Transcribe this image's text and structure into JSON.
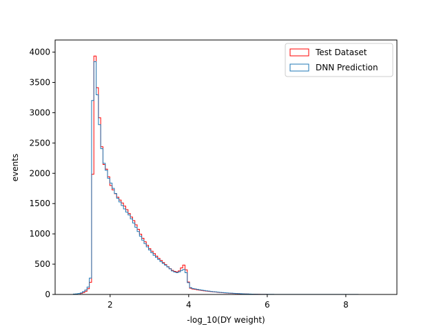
{
  "chart_data": {
    "type": "histogram-step",
    "xlabel": "-log_10(DY weight)",
    "ylabel": "events",
    "xlim": [
      0.6,
      9.3
    ],
    "ylim": [
      0,
      4200
    ],
    "xticks": [
      2,
      4,
      6,
      8
    ],
    "yticks": [
      0,
      500,
      1000,
      1500,
      2000,
      2500,
      3000,
      3500,
      4000
    ],
    "grid": false,
    "legend_position": "top-right",
    "bin_edges_range": [
      0.6,
      9.3
    ],
    "bin_count": 150,
    "series": [
      {
        "name": "Test Dataset",
        "color": "#ff0000",
        "points": [
          [
            1.22,
            10
          ],
          [
            1.28,
            20
          ],
          [
            1.34,
            35
          ],
          [
            1.4,
            60
          ],
          [
            1.46,
            110
          ],
          [
            1.52,
            250
          ],
          [
            1.55,
            1720
          ],
          [
            1.61,
            3980
          ],
          [
            1.7,
            3170
          ],
          [
            1.76,
            2680
          ],
          [
            1.82,
            2180
          ],
          [
            1.9,
            2080
          ],
          [
            1.96,
            1950
          ],
          [
            2.02,
            1800
          ],
          [
            2.1,
            1700
          ],
          [
            2.2,
            1600
          ],
          [
            2.3,
            1520
          ],
          [
            2.4,
            1430
          ],
          [
            2.5,
            1320
          ],
          [
            2.6,
            1220
          ],
          [
            2.7,
            1100
          ],
          [
            2.8,
            960
          ],
          [
            2.9,
            860
          ],
          [
            3.0,
            760
          ],
          [
            3.1,
            690
          ],
          [
            3.2,
            620
          ],
          [
            3.3,
            560
          ],
          [
            3.4,
            500
          ],
          [
            3.5,
            440
          ],
          [
            3.6,
            390
          ],
          [
            3.7,
            370
          ],
          [
            3.8,
            400
          ],
          [
            3.85,
            500
          ],
          [
            3.92,
            460
          ],
          [
            4.02,
            110
          ],
          [
            4.1,
            90
          ],
          [
            4.25,
            75
          ],
          [
            4.4,
            60
          ],
          [
            4.6,
            45
          ],
          [
            4.8,
            32
          ],
          [
            5.0,
            22
          ],
          [
            5.2,
            14
          ],
          [
            5.4,
            9
          ],
          [
            5.6,
            5
          ],
          [
            5.8,
            2
          ],
          [
            6.0,
            1
          ]
        ]
      },
      {
        "name": "DNN Prediction",
        "color": "#1f77b4",
        "points": [
          [
            1.05,
            5
          ],
          [
            1.15,
            10
          ],
          [
            1.25,
            20
          ],
          [
            1.31,
            40
          ],
          [
            1.38,
            70
          ],
          [
            1.44,
            120
          ],
          [
            1.49,
            270
          ],
          [
            1.52,
            2720
          ],
          [
            1.61,
            3890
          ],
          [
            1.7,
            3040
          ],
          [
            1.76,
            2580
          ],
          [
            1.82,
            2220
          ],
          [
            1.9,
            2060
          ],
          [
            1.96,
            1920
          ],
          [
            2.02,
            1840
          ],
          [
            2.1,
            1720
          ],
          [
            2.2,
            1580
          ],
          [
            2.3,
            1480
          ],
          [
            2.4,
            1380
          ],
          [
            2.5,
            1300
          ],
          [
            2.6,
            1180
          ],
          [
            2.7,
            1060
          ],
          [
            2.8,
            930
          ],
          [
            2.9,
            830
          ],
          [
            3.0,
            740
          ],
          [
            3.1,
            660
          ],
          [
            3.2,
            600
          ],
          [
            3.3,
            540
          ],
          [
            3.4,
            490
          ],
          [
            3.5,
            440
          ],
          [
            3.6,
            380
          ],
          [
            3.7,
            360
          ],
          [
            3.8,
            380
          ],
          [
            3.85,
            420
          ],
          [
            3.92,
            400
          ],
          [
            4.02,
            120
          ],
          [
            4.1,
            100
          ],
          [
            4.25,
            80
          ],
          [
            4.4,
            65
          ],
          [
            4.6,
            48
          ],
          [
            4.8,
            35
          ],
          [
            5.0,
            25
          ],
          [
            5.2,
            16
          ],
          [
            5.4,
            10
          ],
          [
            5.6,
            6
          ],
          [
            5.8,
            3
          ],
          [
            6.2,
            2
          ],
          [
            7.0,
            1
          ],
          [
            8.0,
            1
          ],
          [
            9.2,
            0
          ]
        ]
      }
    ]
  }
}
